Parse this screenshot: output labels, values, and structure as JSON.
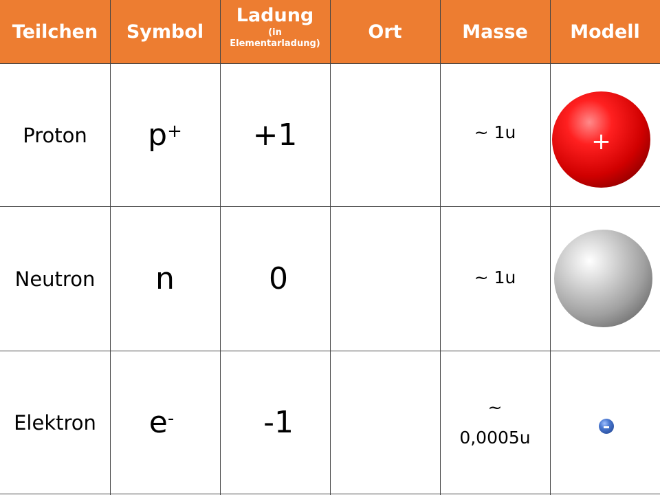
{
  "header": {
    "columns": [
      {
        "label": "Teilchen"
      },
      {
        "label": "Symbol"
      },
      {
        "label": "Ladung",
        "sub": "(in Elementarladung)"
      },
      {
        "label": "Ort"
      },
      {
        "label": "Masse"
      },
      {
        "label": "Modell"
      }
    ]
  },
  "rows": [
    {
      "name": "Proton",
      "symbol": "p",
      "symbol_sup": "+",
      "charge": "+1",
      "location": "",
      "mass": "~ 1u",
      "model_sign": "+",
      "model_color": "#E00000"
    },
    {
      "name": "Neutron",
      "symbol": "n",
      "symbol_sup": "",
      "charge": "0",
      "location": "",
      "mass": "~ 1u",
      "model_sign": "",
      "model_color": "#9A9A9A"
    },
    {
      "name": "Elektron",
      "symbol": "e",
      "symbol_sup": "-",
      "charge": "-1",
      "location": "",
      "mass_line1": "~",
      "mass_line2": "0,0005u",
      "model_sign": "-",
      "model_color": "#2F5BB0"
    }
  ],
  "colors": {
    "header": "#ED7D31",
    "grid": "#444444"
  }
}
